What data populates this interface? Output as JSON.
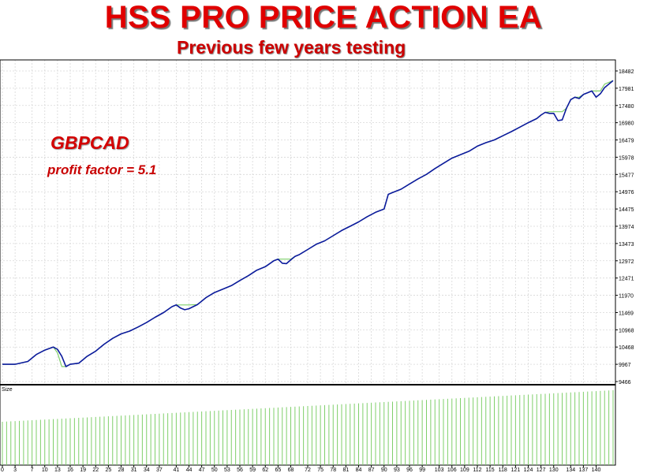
{
  "header": {
    "title": "HSS PRO PRICE ACTION EA",
    "subtitle": "Previous few years testing"
  },
  "annotations": {
    "pair": "GBPCAD",
    "profit_factor": "profit factor = 5.1"
  },
  "colors": {
    "title": "#e00000",
    "balance_line": "#0b1a9c",
    "equity_line": "#7fcf6a",
    "volume_bars": "#7fcf6a",
    "grid": "#d8d8d8"
  },
  "chart_data": {
    "type": "line",
    "grid": true,
    "y_ticks": [
      9466,
      9967,
      10468,
      10968,
      11469,
      11970,
      12471,
      12972,
      13473,
      13974,
      14475,
      14976,
      15477,
      15978,
      16479,
      16980,
      17480,
      17981,
      18482
    ],
    "ylim": [
      9466,
      18700
    ],
    "x_ticks": [
      0,
      3,
      7,
      10,
      13,
      16,
      19,
      22,
      25,
      28,
      31,
      34,
      37,
      41,
      44,
      47,
      50,
      53,
      56,
      59,
      62,
      65,
      68,
      72,
      75,
      78,
      81,
      84,
      87,
      90,
      93,
      96,
      99,
      103,
      106,
      109,
      112,
      115,
      118,
      121,
      124,
      127,
      130,
      134,
      137,
      140
    ],
    "xlim": [
      0,
      144
    ],
    "series": [
      {
        "role": "balance",
        "x": [
          0,
          3,
          6,
          8,
          10,
          12,
          13,
          14,
          15,
          16,
          18,
          20,
          22,
          24,
          26,
          28,
          30,
          32,
          34,
          36,
          38,
          40,
          41,
          42,
          43,
          44,
          46,
          48,
          50,
          52,
          54,
          56,
          58,
          60,
          62,
          64,
          65,
          66,
          67,
          68,
          69,
          70,
          72,
          74,
          76,
          78,
          80,
          82,
          84,
          86,
          88,
          90,
          91,
          92,
          94,
          96,
          98,
          100,
          102,
          104,
          106,
          108,
          110,
          112,
          114,
          116,
          118,
          120,
          122,
          124,
          126,
          127,
          128,
          129,
          130,
          131,
          132,
          133,
          134,
          135,
          136,
          137,
          138,
          139,
          140,
          141,
          142,
          144
        ],
        "values": [
          9967,
          9967,
          10050,
          10250,
          10380,
          10468,
          10400,
          10200,
          9900,
          9967,
          10000,
          10200,
          10350,
          10550,
          10720,
          10850,
          10930,
          11050,
          11180,
          11330,
          11469,
          11640,
          11690,
          11600,
          11550,
          11580,
          11700,
          11900,
          12050,
          12150,
          12250,
          12400,
          12540,
          12700,
          12800,
          12972,
          13020,
          12900,
          12890,
          13000,
          13100,
          13150,
          13300,
          13450,
          13550,
          13700,
          13850,
          13974,
          14100,
          14250,
          14380,
          14475,
          14900,
          14950,
          15050,
          15200,
          15350,
          15480,
          15650,
          15800,
          15950,
          16050,
          16150,
          16300,
          16400,
          16479,
          16600,
          16720,
          16850,
          16980,
          17100,
          17200,
          17280,
          17250,
          17250,
          17040,
          17060,
          17400,
          17650,
          17720,
          17680,
          17800,
          17850,
          17900,
          17720,
          17820,
          18000,
          18200
        ]
      },
      {
        "role": "equity",
        "x": [
          0,
          3,
          6,
          8,
          10,
          12,
          13,
          14,
          15,
          16,
          18,
          20,
          22,
          24,
          26,
          28,
          30,
          32,
          34,
          36,
          38,
          40,
          41,
          42,
          43,
          44,
          46,
          48,
          50,
          52,
          54,
          56,
          58,
          60,
          62,
          64,
          65,
          66,
          67,
          68,
          69,
          70,
          72,
          74,
          76,
          78,
          80,
          82,
          84,
          86,
          88,
          90,
          91,
          92,
          94,
          96,
          98,
          100,
          102,
          104,
          106,
          108,
          110,
          112,
          114,
          116,
          118,
          120,
          122,
          124,
          126,
          127,
          128,
          129,
          130,
          131,
          132,
          133,
          134,
          135,
          136,
          137,
          138,
          139,
          140,
          141,
          142,
          144
        ],
        "values": [
          9967,
          9967,
          10050,
          10250,
          10380,
          10468,
          10300,
          9900,
          9900,
          9967,
          10000,
          10200,
          10350,
          10550,
          10720,
          10850,
          10930,
          11050,
          11180,
          11330,
          11469,
          11640,
          11690,
          11690,
          11690,
          11690,
          11700,
          11900,
          12050,
          12150,
          12250,
          12400,
          12540,
          12700,
          12800,
          12972,
          13020,
          13020,
          13020,
          13020,
          13100,
          13150,
          13300,
          13450,
          13550,
          13700,
          13850,
          13974,
          14100,
          14250,
          14380,
          14475,
          14900,
          14950,
          15050,
          15200,
          15350,
          15480,
          15650,
          15800,
          15950,
          16050,
          16150,
          16300,
          16400,
          16479,
          16600,
          16720,
          16850,
          16980,
          17100,
          17200,
          17280,
          17300,
          17300,
          17300,
          17300,
          17400,
          17650,
          17720,
          17720,
          17800,
          17850,
          17900,
          17900,
          17900,
          18100,
          18200
        ]
      }
    ],
    "size_panel": {
      "label": "Size",
      "bars": 145,
      "start_level": 0.55,
      "end_level": 0.95
    }
  }
}
